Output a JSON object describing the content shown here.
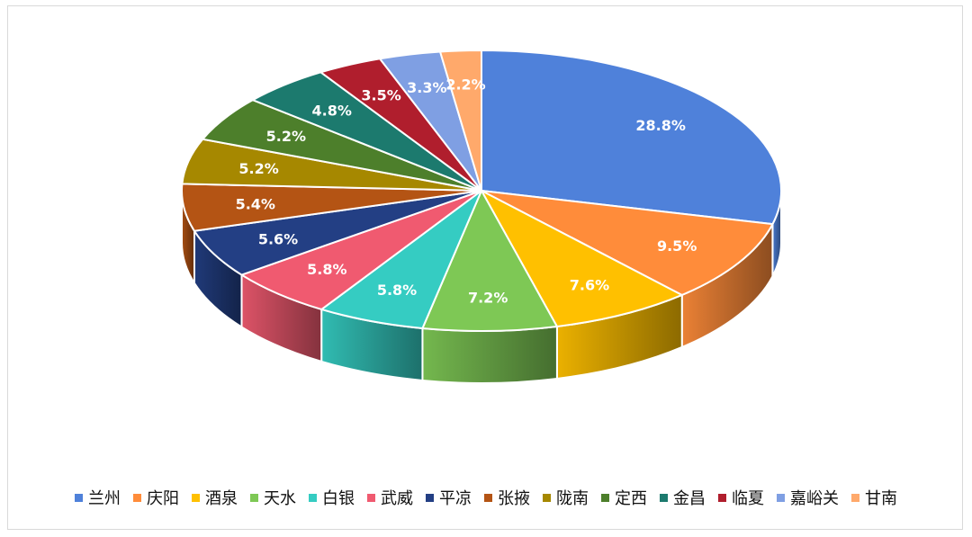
{
  "chart_data": {
    "type": "pie",
    "title": "",
    "categories": [
      "兰州",
      "庆阳",
      "酒泉",
      "天水",
      "白银",
      "武威",
      "平凉",
      "张掖",
      "陇南",
      "定西",
      "金昌",
      "临夏",
      "嘉峪关",
      "甘南"
    ],
    "values": [
      28.8,
      9.5,
      7.6,
      7.2,
      5.8,
      5.8,
      5.6,
      5.4,
      5.2,
      5.2,
      4.8,
      3.5,
      3.3,
      2.2
    ],
    "labels": [
      "28.8%",
      "9.5%",
      "7.6%",
      "7.2%",
      "5.8%",
      "5.8%",
      "5.6%",
      "5.4%",
      "5.2%",
      "5.2%",
      "4.8%",
      "3.5%",
      "3.3%",
      "2.2%"
    ],
    "colors": [
      "#4F81DA",
      "#FF8C3A",
      "#FFC000",
      "#7EC855",
      "#35CCC2",
      "#F05A70",
      "#233F84",
      "#B45414",
      "#A68800",
      "#4D7F2B",
      "#1C7A6E",
      "#B01E2D",
      "#7F9FE3",
      "#FFA96B"
    ],
    "style": "3d",
    "legend_position": "bottom"
  }
}
